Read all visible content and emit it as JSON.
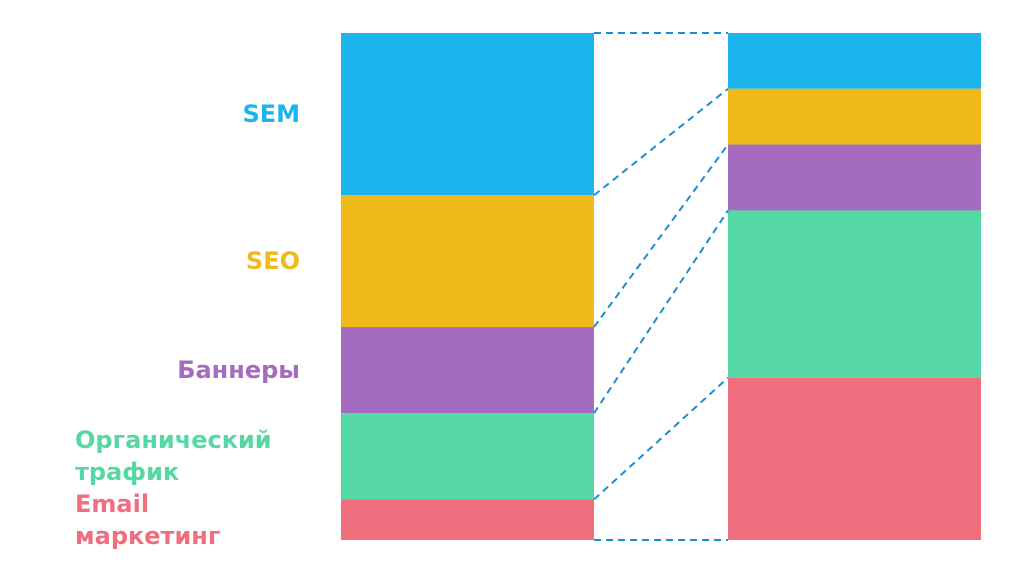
{
  "chart_data": {
    "type": "bar",
    "stacked": true,
    "categories": [
      null,
      null
    ],
    "ylim": [
      0,
      100
    ],
    "series": [
      {
        "name": "SEM",
        "color": "#1cb4ed",
        "values": [
          32,
          11
        ]
      },
      {
        "name": "SEO",
        "color": "#f0b91c",
        "values": [
          26,
          11
        ]
      },
      {
        "name": "Баннеры",
        "color": "#a46bbe",
        "values": [
          17,
          13
        ]
      },
      {
        "name": "Органический трафик",
        "color": "#55d8a5",
        "values": [
          17,
          33
        ]
      },
      {
        "name": "Email маркетинг",
        "color": "#f06e7e",
        "values": [
          8,
          32
        ]
      }
    ]
  }
}
